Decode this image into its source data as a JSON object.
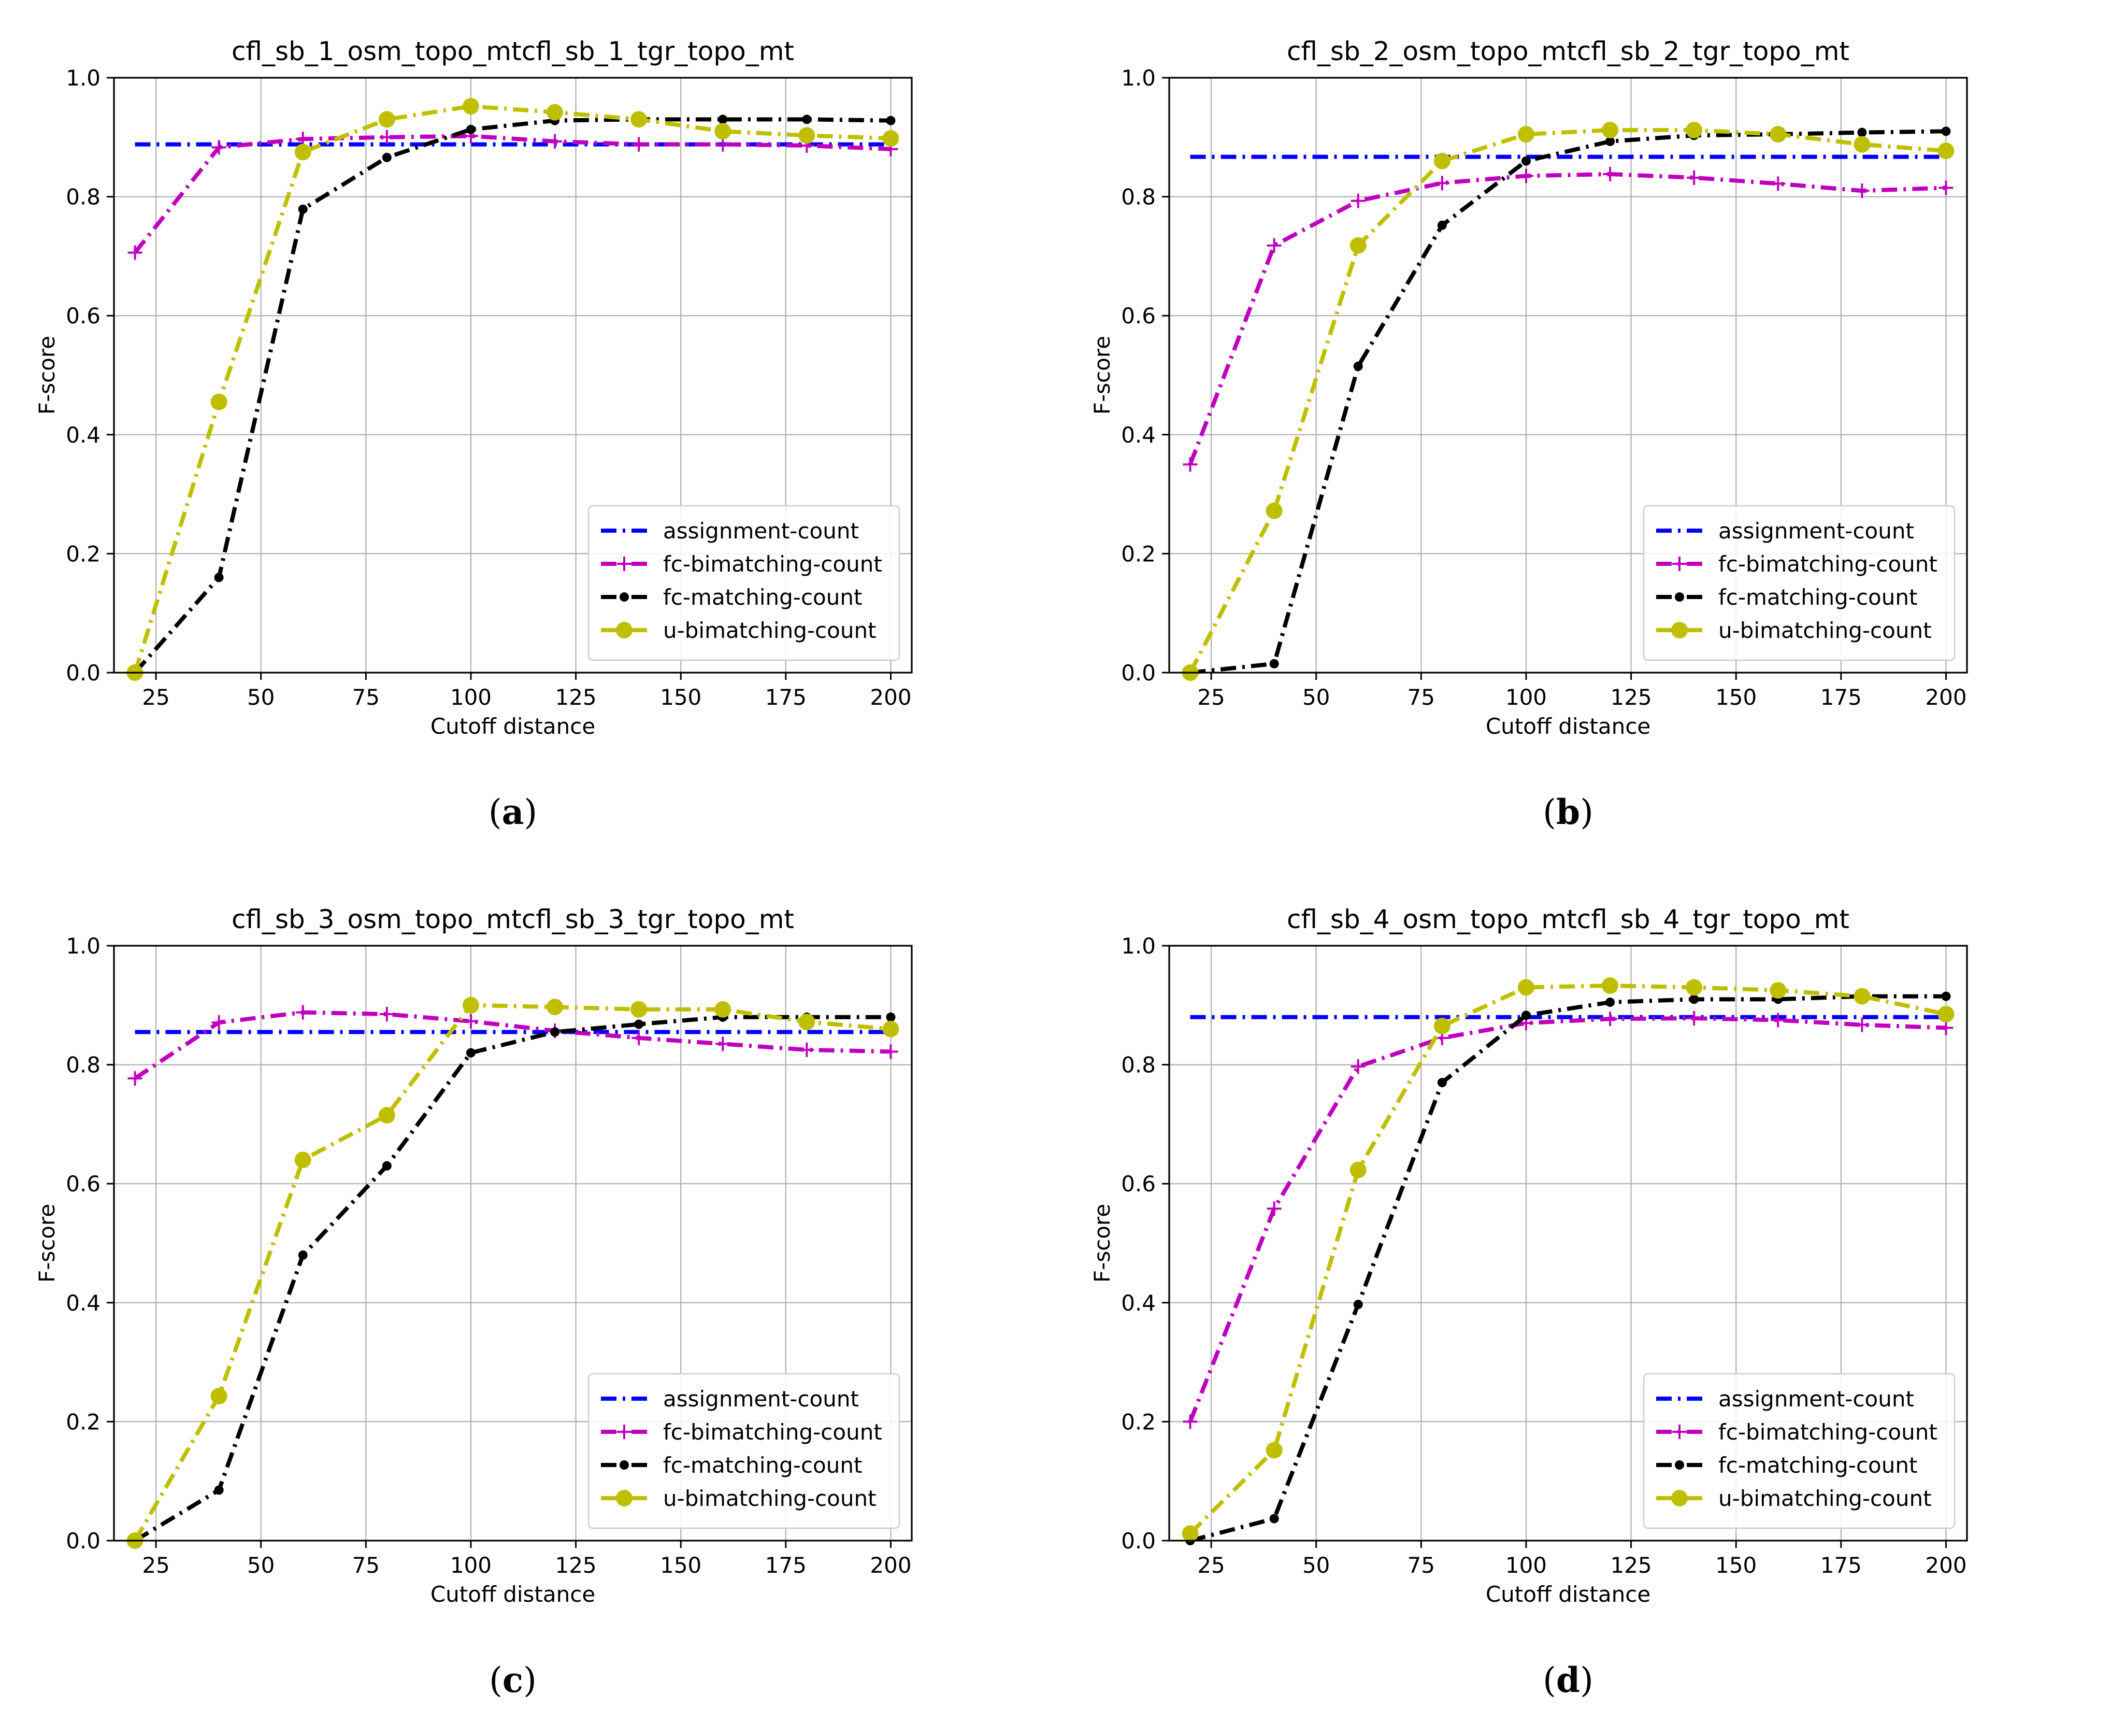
{
  "chart_data": [
    {
      "type": "line",
      "panel_label": "a",
      "title": "cfl_sb_1_osm_topo_mtcfl_sb_1_tgr_topo_mt",
      "xlabel": "Cutoff distance",
      "ylabel": "F-score",
      "xlim": [
        15,
        205
      ],
      "ylim": [
        0,
        1.0
      ],
      "xticks": [
        25,
        50,
        75,
        100,
        125,
        150,
        175,
        200
      ],
      "yticks": [
        0.0,
        0.2,
        0.4,
        0.6,
        0.8,
        1.0
      ],
      "grid": true,
      "legend_position": "lower-right",
      "x": [
        20,
        40,
        60,
        80,
        100,
        120,
        140,
        160,
        180,
        200
      ],
      "series": [
        {
          "name": "assignment-count",
          "color": "#0000ff",
          "marker": "none",
          "values": [
            0.888,
            0.888,
            0.888,
            0.888,
            0.888,
            0.888,
            0.888,
            0.888,
            0.888,
            0.888
          ]
        },
        {
          "name": "fc-bimatching-count",
          "color": "#bf00bf",
          "marker": "plus",
          "values": [
            0.706,
            0.883,
            0.897,
            0.9,
            0.902,
            0.893,
            0.888,
            0.888,
            0.886,
            0.88
          ]
        },
        {
          "name": "fc-matching-count",
          "color": "#000000",
          "marker": "dot",
          "values": [
            0.0,
            0.16,
            0.779,
            0.866,
            0.913,
            0.928,
            0.93,
            0.93,
            0.93,
            0.928
          ]
        },
        {
          "name": "u-bimatching-count",
          "color": "#bfbf00",
          "marker": "circle",
          "values": [
            0.0,
            0.455,
            0.875,
            0.93,
            0.952,
            0.942,
            0.93,
            0.91,
            0.903,
            0.898
          ]
        }
      ]
    },
    {
      "type": "line",
      "panel_label": "b",
      "title": "cfl_sb_2_osm_topo_mtcfl_sb_2_tgr_topo_mt",
      "xlabel": "Cutoff distance",
      "ylabel": "F-score",
      "xlim": [
        15,
        205
      ],
      "ylim": [
        0,
        1.0
      ],
      "xticks": [
        25,
        50,
        75,
        100,
        125,
        150,
        175,
        200
      ],
      "yticks": [
        0.0,
        0.2,
        0.4,
        0.6,
        0.8,
        1.0
      ],
      "grid": true,
      "legend_position": "lower-right",
      "x": [
        20,
        40,
        60,
        80,
        100,
        120,
        140,
        160,
        180,
        200
      ],
      "series": [
        {
          "name": "assignment-count",
          "color": "#0000ff",
          "marker": "none",
          "values": [
            0.867,
            0.867,
            0.867,
            0.867,
            0.867,
            0.867,
            0.867,
            0.867,
            0.867,
            0.867
          ]
        },
        {
          "name": "fc-bimatching-count",
          "color": "#bf00bf",
          "marker": "plus",
          "values": [
            0.35,
            0.718,
            0.793,
            0.823,
            0.835,
            0.838,
            0.832,
            0.822,
            0.81,
            0.815
          ]
        },
        {
          "name": "fc-matching-count",
          "color": "#000000",
          "marker": "dot",
          "values": [
            0.0,
            0.015,
            0.515,
            0.752,
            0.86,
            0.893,
            0.903,
            0.905,
            0.908,
            0.91
          ]
        },
        {
          "name": "u-bimatching-count",
          "color": "#bfbf00",
          "marker": "circle",
          "values": [
            0.0,
            0.272,
            0.718,
            0.86,
            0.905,
            0.912,
            0.912,
            0.905,
            0.888,
            0.877
          ]
        }
      ]
    },
    {
      "type": "line",
      "panel_label": "c",
      "title": "cfl_sb_3_osm_topo_mtcfl_sb_3_tgr_topo_mt",
      "xlabel": "Cutoff distance",
      "ylabel": "F-score",
      "xlim": [
        15,
        205
      ],
      "ylim": [
        0,
        1.0
      ],
      "xticks": [
        25,
        50,
        75,
        100,
        125,
        150,
        175,
        200
      ],
      "yticks": [
        0.0,
        0.2,
        0.4,
        0.6,
        0.8,
        1.0
      ],
      "grid": true,
      "legend_position": "lower-right",
      "x": [
        20,
        40,
        60,
        80,
        100,
        120,
        140,
        160,
        180,
        200
      ],
      "series": [
        {
          "name": "assignment-count",
          "color": "#0000ff",
          "marker": "none",
          "values": [
            0.855,
            0.855,
            0.855,
            0.855,
            0.855,
            0.855,
            0.855,
            0.855,
            0.855,
            0.855
          ]
        },
        {
          "name": "fc-bimatching-count",
          "color": "#bf00bf",
          "marker": "plus",
          "values": [
            0.777,
            0.871,
            0.888,
            0.885,
            0.873,
            0.857,
            0.845,
            0.835,
            0.825,
            0.822
          ]
        },
        {
          "name": "fc-matching-count",
          "color": "#000000",
          "marker": "dot",
          "values": [
            0.0,
            0.085,
            0.48,
            0.63,
            0.82,
            0.855,
            0.868,
            0.88,
            0.88,
            0.88
          ]
        },
        {
          "name": "u-bimatching-count",
          "color": "#bfbf00",
          "marker": "circle",
          "values": [
            0.0,
            0.243,
            0.64,
            0.715,
            0.9,
            0.897,
            0.893,
            0.893,
            0.872,
            0.86
          ]
        }
      ]
    },
    {
      "type": "line",
      "panel_label": "d",
      "title": "cfl_sb_4_osm_topo_mtcfl_sb_4_tgr_topo_mt",
      "xlabel": "Cutoff distance",
      "ylabel": "F-score",
      "xlim": [
        15,
        205
      ],
      "ylim": [
        0,
        1.0
      ],
      "xticks": [
        25,
        50,
        75,
        100,
        125,
        150,
        175,
        200
      ],
      "yticks": [
        0.0,
        0.2,
        0.4,
        0.6,
        0.8,
        1.0
      ],
      "grid": true,
      "legend_position": "lower-right",
      "x": [
        20,
        40,
        60,
        80,
        100,
        120,
        140,
        160,
        180,
        200
      ],
      "series": [
        {
          "name": "assignment-count",
          "color": "#0000ff",
          "marker": "none",
          "values": [
            0.88,
            0.88,
            0.88,
            0.88,
            0.88,
            0.88,
            0.88,
            0.88,
            0.88,
            0.88
          ]
        },
        {
          "name": "fc-bimatching-count",
          "color": "#bf00bf",
          "marker": "plus",
          "values": [
            0.2,
            0.558,
            0.797,
            0.845,
            0.87,
            0.877,
            0.878,
            0.875,
            0.867,
            0.862
          ]
        },
        {
          "name": "fc-matching-count",
          "color": "#000000",
          "marker": "dot",
          "values": [
            0.0,
            0.037,
            0.397,
            0.77,
            0.883,
            0.905,
            0.91,
            0.91,
            0.915,
            0.915
          ]
        },
        {
          "name": "u-bimatching-count",
          "color": "#bfbf00",
          "marker": "circle",
          "values": [
            0.012,
            0.152,
            0.623,
            0.865,
            0.93,
            0.933,
            0.93,
            0.925,
            0.915,
            0.885
          ]
        }
      ]
    }
  ]
}
